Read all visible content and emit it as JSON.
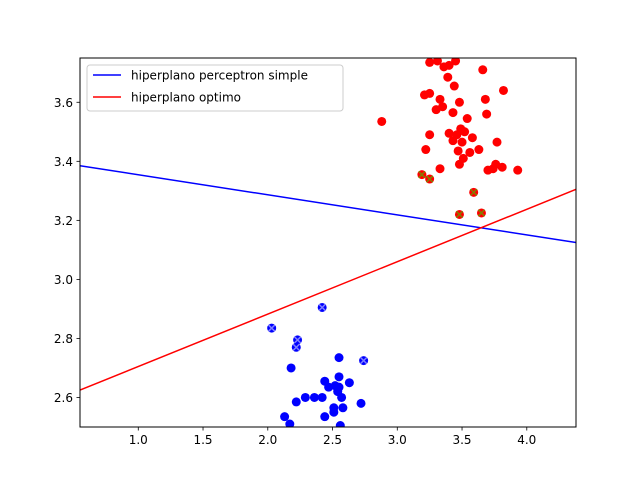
{
  "chart_data": {
    "type": "scatter",
    "title": "",
    "xlabel": "",
    "ylabel": "",
    "xlim": [
      0.55,
      4.38
    ],
    "ylim": [
      2.5,
      3.75
    ],
    "x_ticks": [
      "1.0",
      "1.5",
      "2.0",
      "2.5",
      "3.0",
      "3.5",
      "4.0"
    ],
    "y_ticks": [
      "2.6",
      "2.8",
      "3.0",
      "3.2",
      "3.4",
      "3.6"
    ],
    "legend": {
      "placement": "top-left",
      "entries": [
        {
          "label": "hiperplano perceptron simple",
          "color": "#0000ff"
        },
        {
          "label": "hiperplano optimo",
          "color": "#ff0000"
        }
      ]
    },
    "lines": [
      {
        "name": "hiperplano perceptron simple",
        "color": "#0000ff",
        "points": [
          [
            0.55,
            3.385
          ],
          [
            4.38,
            3.125
          ]
        ]
      },
      {
        "name": "hiperplano optimo",
        "color": "#ff0000",
        "points": [
          [
            0.55,
            2.625
          ],
          [
            4.38,
            3.305
          ]
        ]
      }
    ],
    "scatter_series": [
      {
        "color": "#ff0000",
        "points": [
          [
            3.25,
            3.735
          ],
          [
            3.31,
            3.74
          ],
          [
            3.36,
            3.72
          ],
          [
            3.4,
            3.725
          ],
          [
            3.45,
            3.74
          ],
          [
            3.66,
            3.71
          ],
          [
            3.39,
            3.685
          ],
          [
            3.44,
            3.655
          ],
          [
            3.21,
            3.625
          ],
          [
            3.25,
            3.63
          ],
          [
            3.33,
            3.61
          ],
          [
            3.48,
            3.6
          ],
          [
            3.68,
            3.61
          ],
          [
            3.82,
            3.64
          ],
          [
            3.3,
            3.575
          ],
          [
            3.35,
            3.585
          ],
          [
            3.43,
            3.565
          ],
          [
            3.54,
            3.545
          ],
          [
            3.69,
            3.56
          ],
          [
            2.88,
            3.535
          ],
          [
            3.4,
            3.495
          ],
          [
            3.46,
            3.49
          ],
          [
            3.49,
            3.51
          ],
          [
            3.52,
            3.5
          ],
          [
            3.25,
            3.49
          ],
          [
            3.58,
            3.48
          ],
          [
            3.43,
            3.47
          ],
          [
            3.5,
            3.465
          ],
          [
            3.77,
            3.465
          ],
          [
            3.22,
            3.44
          ],
          [
            3.47,
            3.435
          ],
          [
            3.56,
            3.43
          ],
          [
            3.63,
            3.44
          ],
          [
            3.51,
            3.41
          ],
          [
            3.48,
            3.39
          ],
          [
            3.33,
            3.375
          ],
          [
            3.7,
            3.37
          ],
          [
            3.74,
            3.375
          ],
          [
            3.76,
            3.39
          ],
          [
            3.81,
            3.38
          ],
          [
            3.93,
            3.37
          ]
        ]
      },
      {
        "color": "#0000ff",
        "points": [
          [
            2.55,
            2.735
          ],
          [
            2.18,
            2.7
          ],
          [
            2.44,
            2.655
          ],
          [
            2.55,
            2.67
          ],
          [
            2.63,
            2.65
          ],
          [
            2.47,
            2.635
          ],
          [
            2.52,
            2.64
          ],
          [
            2.55,
            2.635
          ],
          [
            2.54,
            2.62
          ],
          [
            2.29,
            2.6
          ],
          [
            2.42,
            2.6
          ],
          [
            2.57,
            2.6
          ],
          [
            2.22,
            2.585
          ],
          [
            2.72,
            2.58
          ],
          [
            2.36,
            2.6
          ],
          [
            2.58,
            2.565
          ],
          [
            2.51,
            2.565
          ],
          [
            2.44,
            2.535
          ],
          [
            2.51,
            2.55
          ],
          [
            2.13,
            2.535
          ],
          [
            2.17,
            2.51
          ],
          [
            2.56,
            2.505
          ]
        ]
      },
      {
        "color": "#ff0000",
        "marker": "x",
        "cross_color": "#808000",
        "points": [
          [
            3.19,
            3.355
          ],
          [
            3.25,
            3.34
          ],
          [
            3.59,
            3.295
          ],
          [
            3.48,
            3.22
          ],
          [
            3.65,
            3.225
          ]
        ]
      },
      {
        "color": "#0000ff",
        "marker": "x",
        "cross_color": "#8080ff",
        "points": [
          [
            2.42,
            2.905
          ],
          [
            2.03,
            2.835
          ],
          [
            2.23,
            2.795
          ],
          [
            2.22,
            2.77
          ],
          [
            2.74,
            2.725
          ]
        ]
      }
    ]
  }
}
